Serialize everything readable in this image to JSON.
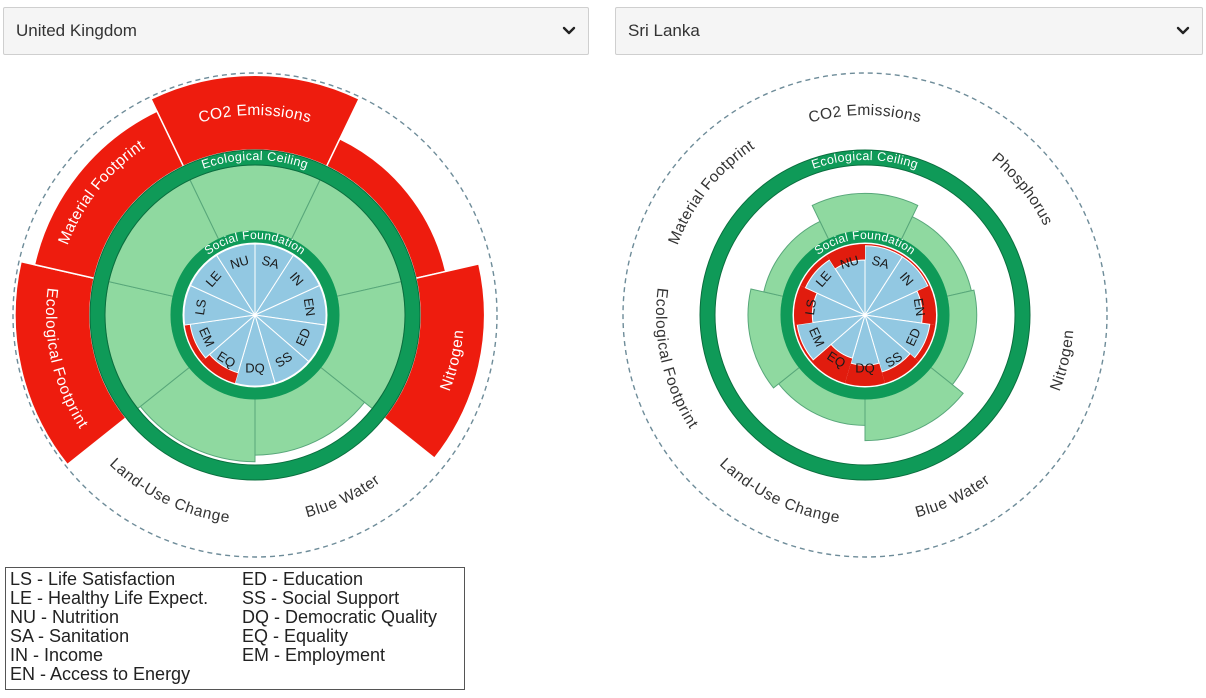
{
  "selectors": {
    "left": {
      "value": "United Kingdom"
    },
    "right": {
      "value": "Sri Lanka"
    }
  },
  "colors": {
    "overshoot": "#ee1c0e",
    "ecological": "#8fd9a0",
    "ecological_stroke": "#58a77a",
    "social": "#92c8e2",
    "shortfall": "#e11c0e",
    "ring": "#0f9a58",
    "ring_text": "#ffffff",
    "dashed": "#6e8c99"
  },
  "rings": {
    "ecological_label": "Ecological Ceiling",
    "social_label": "Social Foundation"
  },
  "ecological_labels": [
    "CO2 Emissions",
    "Phosphorus",
    "Nitrogen",
    "Blue Water",
    "Land-Use Change",
    "Ecological Footprint",
    "Material Footprint"
  ],
  "social_labels": [
    "SA",
    "IN",
    "EN",
    "ED",
    "SS",
    "DQ",
    "EQ",
    "EM",
    "LS",
    "LE",
    "NU"
  ],
  "donuts": {
    "left": {
      "ecological": [
        2.1,
        1.45,
        1.95,
        0.85,
        0.95,
        2.4,
        1.9
      ],
      "social": [
        1.0,
        1.0,
        1.0,
        1.0,
        1.0,
        1.0,
        0.72,
        0.85,
        1.0,
        1.0,
        1.0
      ]
    },
    "right": {
      "ecological": [
        0.57,
        0.38,
        0.42,
        0.63,
        0.4,
        0.5,
        0.3
      ],
      "social": [
        0.95,
        0.95,
        0.65,
        0.85,
        0.7,
        0.5,
        0.4,
        0.93,
        0.55,
        0.85,
        0.6
      ]
    }
  },
  "legend": {
    "col1": [
      "LS - Life Satisfaction",
      "LE - Healthy Life Expect.",
      "NU - Nutrition",
      "SA - Sanitation",
      "IN - Income",
      "EN - Access to Energy"
    ],
    "col2": [
      "ED - Education",
      "SS - Social Support",
      "DQ - Democratic Quality",
      "EQ - Equality",
      "EM - Employment"
    ]
  }
}
